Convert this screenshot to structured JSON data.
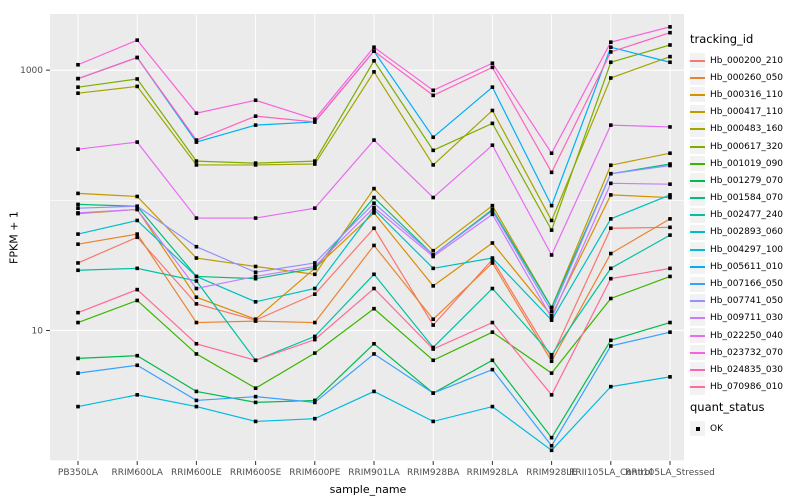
{
  "colors": {
    "panel_bg": "#EBEBEB",
    "grid_major": "#FFFFFF",
    "grid_minor": "#FFFFFF",
    "tick_text": "#4D4D4D",
    "tick_mark": "#333333",
    "point": "#000000",
    "legend_key_bg": "#F2F2F2"
  },
  "chart_data": {
    "type": "line",
    "title": "",
    "xlabel": "sample_name",
    "ylabel": "FPKM + 1",
    "y_scale": "log10",
    "ylim": [
      1,
      2700
    ],
    "y_tick_values": [
      10,
      1000
    ],
    "y_tick_labels": [
      "10",
      "1000"
    ],
    "y_minor_values": [
      1,
      100
    ],
    "grid": true,
    "point_marker": "small-black-square",
    "categories": [
      "PB350LA",
      "RRIM600LA",
      "RRIM600LE",
      "RRIM600SE",
      "RRIM600PE",
      "RRIM901LA",
      "RRIM928BA",
      "RRIM928LA",
      "RRIM928LE",
      "RRII105LA_Control",
      "RRII105LA_Stressed"
    ],
    "legend": {
      "title": "tracking_id",
      "position": "right"
    },
    "quant_status_legend": {
      "title": "quant_status",
      "items": [
        {
          "label": "OK",
          "marker": "black-square"
        }
      ]
    },
    "series": [
      {
        "name": "Hb_000200_210",
        "color": "#F8766D",
        "values": [
          33,
          52,
          16,
          12,
          19,
          61,
          11,
          35,
          6.2,
          61,
          62
        ]
      },
      {
        "name": "Hb_000260_050",
        "color": "#EA8331",
        "values": [
          46,
          55,
          11.5,
          11.8,
          11.5,
          45,
          12.2,
          33,
          5.8,
          39,
          72
        ]
      },
      {
        "name": "Hb_000316_110",
        "color": "#D89000",
        "values": [
          79,
          85,
          18,
          12.2,
          30,
          80,
          22,
          47,
          13,
          110,
          105
        ]
      },
      {
        "name": "Hb_000417_110",
        "color": "#C09B00",
        "values": [
          113,
          107,
          36,
          31,
          27,
          123,
          41,
          91,
          15,
          186,
          230
        ]
      },
      {
        "name": "Hb_000483_160",
        "color": "#A3A500",
        "values": [
          665,
          750,
          187,
          187,
          190,
          970,
          187,
          490,
          70,
          870,
          1270
        ]
      },
      {
        "name": "Hb_000617_320",
        "color": "#7CAE00",
        "values": [
          740,
          855,
          200,
          193,
          200,
          1180,
          242,
          390,
          59,
          1150,
          1560
        ]
      },
      {
        "name": "Hb_001019_090",
        "color": "#39B600",
        "values": [
          11.5,
          17,
          6.6,
          3.6,
          6.7,
          14.7,
          5.9,
          9.7,
          4.7,
          17.6,
          26
        ]
      },
      {
        "name": "Hb_001279_070",
        "color": "#00BB4E",
        "values": [
          6.1,
          6.4,
          3.4,
          2.8,
          2.9,
          7.9,
          3.3,
          5.9,
          1.5,
          8.4,
          11.5
        ]
      },
      {
        "name": "Hb_001584_070",
        "color": "#00BF7D",
        "values": [
          93,
          90,
          26,
          25,
          30,
          105,
          38,
          85,
          15,
          160,
          190
        ]
      },
      {
        "name": "Hb_002477_240",
        "color": "#00C1A3",
        "values": [
          29,
          30,
          24,
          5.9,
          9,
          27,
          7.4,
          21,
          6.5,
          30,
          54
        ]
      },
      {
        "name": "Hb_002893_060",
        "color": "#00BFC4",
        "values": [
          55,
          70,
          26,
          16.6,
          21,
          85,
          30,
          36,
          12,
          72,
          110
        ]
      },
      {
        "name": "Hb_004297_100",
        "color": "#00BAE0",
        "values": [
          2.6,
          3.2,
          2.6,
          2.0,
          2.1,
          3.4,
          2.0,
          2.6,
          1.2,
          3.7,
          4.4
        ]
      },
      {
        "name": "Hb_005611_010",
        "color": "#00B0F6",
        "values": [
          860,
          1250,
          280,
          378,
          400,
          1400,
          305,
          740,
          91,
          1500,
          1150
        ]
      },
      {
        "name": "Hb_007166_050",
        "color": "#35A2FF",
        "values": [
          4.7,
          5.4,
          2.9,
          3.1,
          2.8,
          6.6,
          3.3,
          5.0,
          1.3,
          7.6,
          9.7
        ]
      },
      {
        "name": "Hb_007741_050",
        "color": "#9590FF",
        "values": [
          87,
          90,
          44,
          28,
          33,
          95,
          38,
          83,
          14,
          160,
          185
        ]
      },
      {
        "name": "Hb_009711_030",
        "color": "#C77CFF",
        "values": [
          80,
          85,
          21,
          26,
          31,
          88,
          37,
          78,
          12.5,
          135,
          133
        ]
      },
      {
        "name": "Hb_022250_040",
        "color": "#E76BF3",
        "values": [
          247,
          280,
          73,
          73,
          87,
          290,
          105,
          265,
          38,
          378,
          366
        ]
      },
      {
        "name": "Hb_023732_070",
        "color": "#FA62DB",
        "values": [
          1100,
          1700,
          467,
          587,
          420,
          1500,
          700,
          1130,
          230,
          1640,
          2150
        ]
      },
      {
        "name": "Hb_024835_030",
        "color": "#FF62BC",
        "values": [
          860,
          1250,
          290,
          443,
          400,
          1400,
          640,
          1050,
          164,
          1380,
          1940
        ]
      },
      {
        "name": "Hb_070986_010",
        "color": "#FF6A98",
        "values": [
          13.7,
          20.6,
          7.9,
          5.9,
          8.5,
          21,
          7.2,
          11.5,
          3.2,
          25,
          30
        ]
      }
    ]
  }
}
